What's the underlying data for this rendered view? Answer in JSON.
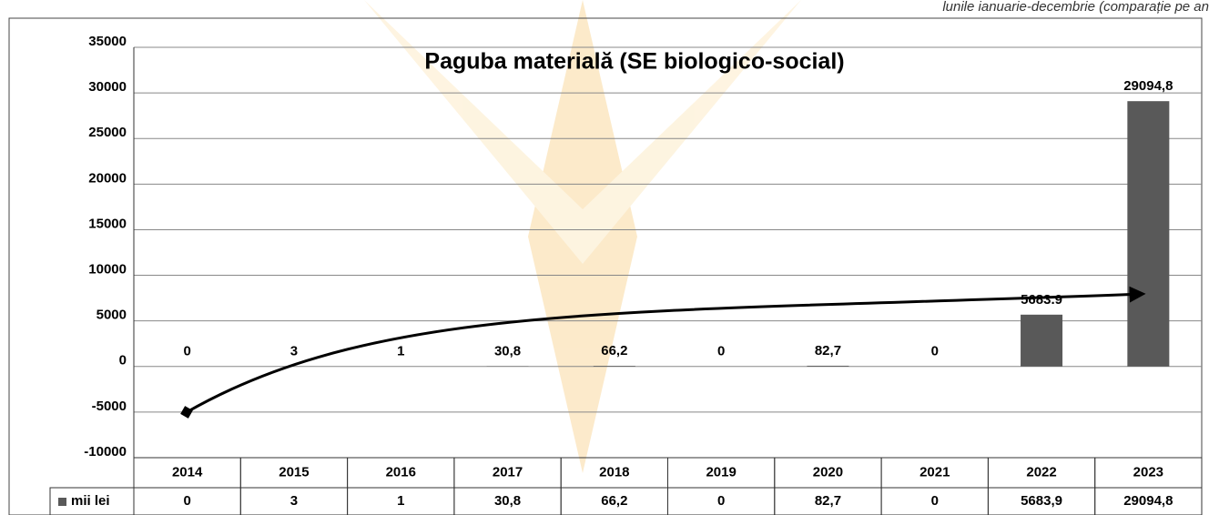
{
  "chart_data": {
    "type": "bar",
    "title": "Paguba materială (SE biologico-social)",
    "subtitle": "lunile ianuarie-decembrie (comparație pe an",
    "categories": [
      "2014",
      "2015",
      "2016",
      "2017",
      "2018",
      "2019",
      "2020",
      "2021",
      "2022",
      "2023"
    ],
    "series": [
      {
        "name": "mii lei",
        "color": "#595959",
        "values": [
          0,
          3,
          1,
          30.8,
          66.2,
          0,
          82.7,
          0,
          5683.9,
          29094.8
        ],
        "value_labels": [
          "0",
          "3",
          "1",
          "30,8",
          "66,2",
          "0",
          "82,7",
          "0",
          "5683.9",
          "29094,8"
        ],
        "table_labels": [
          "0",
          "3",
          "1",
          "30,8",
          "66,2",
          "0",
          "82,7",
          "0",
          "5683,9",
          "29094,8"
        ]
      }
    ],
    "ylim": [
      -10000,
      35000
    ],
    "yticks": [
      -10000,
      -5000,
      0,
      5000,
      10000,
      15000,
      20000,
      25000,
      30000,
      35000
    ],
    "grid": true
  }
}
